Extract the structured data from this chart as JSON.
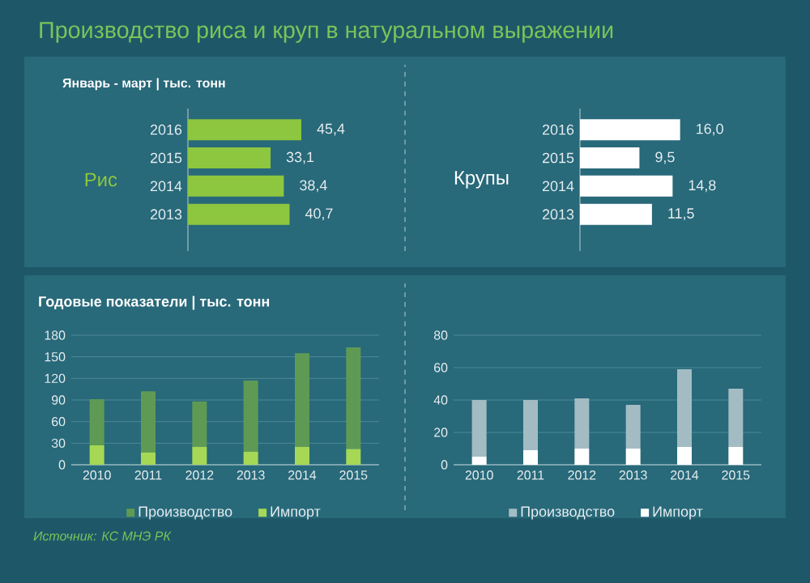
{
  "chart_data": [
    {
      "type": "bar",
      "orientation": "horizontal",
      "title": "Производство риса и круп в натуральном выражении",
      "subtitle": "Январь - март | тыс. тонн",
      "ylabel": "Рис",
      "categories": [
        "2016",
        "2015",
        "2014",
        "2013"
      ],
      "values": [
        45.4,
        33.1,
        38.4,
        40.7
      ],
      "value_labels": [
        "45,4",
        "33,1",
        "38,4",
        "40,7"
      ],
      "color": "#8dc63f"
    },
    {
      "type": "bar",
      "orientation": "horizontal",
      "ylabel": "Крупы",
      "categories": [
        "2016",
        "2015",
        "2014",
        "2013"
      ],
      "values": [
        16.0,
        9.5,
        14.8,
        11.5
      ],
      "value_labels": [
        "16,0",
        "9,5",
        "14,8",
        "11,5"
      ],
      "color": "#ffffff"
    },
    {
      "type": "bar",
      "stacked": true,
      "title": "Годовые показатели | тыс. тонн",
      "categories": [
        "2010",
        "2011",
        "2012",
        "2013",
        "2014",
        "2015"
      ],
      "series": [
        {
          "name": "Импорт",
          "color": "#a6d856",
          "values": [
            27,
            17,
            25,
            18,
            25,
            22
          ]
        },
        {
          "name": "Производство",
          "color": "#5f9a55",
          "values": [
            64,
            85,
            63,
            99,
            130,
            141
          ]
        }
      ],
      "ylim": [
        0,
        180
      ],
      "yticks": [
        0,
        30,
        60,
        90,
        120,
        150,
        180
      ],
      "grid": "y",
      "legend": "bottom",
      "annotations": [
        "Источник: КС МНЭ РК"
      ]
    },
    {
      "type": "bar",
      "stacked": true,
      "categories": [
        "2010",
        "2011",
        "2012",
        "2013",
        "2014",
        "2015"
      ],
      "series": [
        {
          "name": "Импорт",
          "color": "#ffffff",
          "values": [
            5,
            9,
            10,
            10,
            11,
            11
          ]
        },
        {
          "name": "Производство",
          "color": "#a3bcc3",
          "values": [
            35,
            31,
            31,
            27,
            48,
            36
          ]
        }
      ],
      "ylim": [
        0,
        80
      ],
      "yticks": [
        0,
        20,
        40,
        60,
        80
      ],
      "grid": "y",
      "legend": "bottom"
    }
  ]
}
